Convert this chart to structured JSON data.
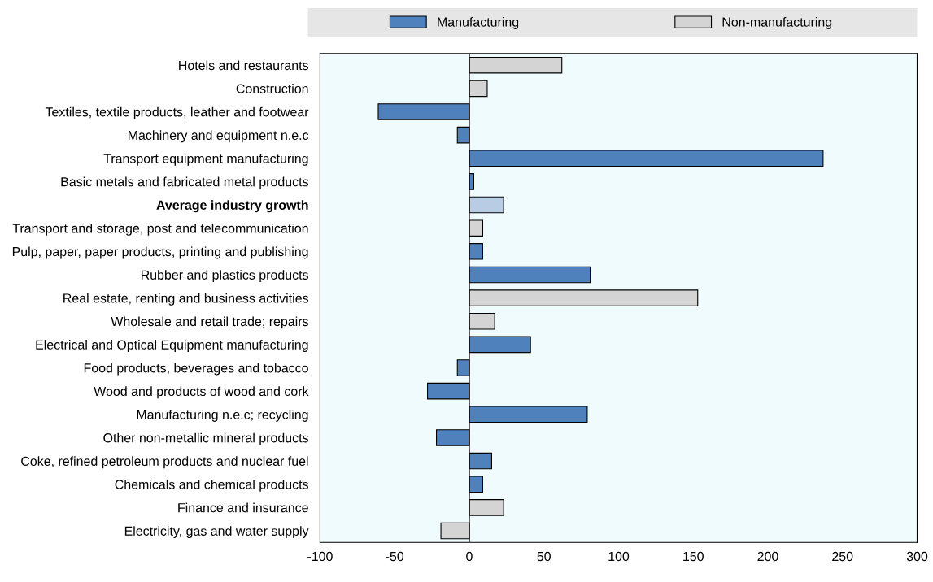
{
  "chart_data": {
    "type": "bar",
    "orientation": "horizontal",
    "categories": [
      "Hotels and restaurants",
      "Construction",
      "Textiles, textile products, leather and footwear",
      "Machinery and equipment n.e.c",
      "Transport equipment manufacturing",
      "Basic metals and fabricated metal products",
      "Average industry growth",
      "Transport and storage, post and telecommunication",
      "Pulp, paper, paper products, printing and publishing",
      "Rubber and plastics products",
      "Real estate, renting and business activities",
      "Wholesale and retail trade; repairs",
      "Electrical and Optical Equipment manufacturing",
      "Food products, beverages and tobacco",
      "Wood and products of wood and cork",
      "Manufacturing n.e.c; recycling",
      "Other non-metallic mineral products",
      "Coke, refined petroleum products and nuclear fuel",
      "Chemicals and chemical products",
      "Finance and insurance",
      "Electricity, gas and water supply"
    ],
    "series": [
      {
        "name": "Manufacturing",
        "color": "#4f81bd",
        "values": [
          null,
          null,
          -61,
          -8,
          237,
          3,
          null,
          null,
          9,
          81,
          null,
          null,
          41,
          -8,
          -28,
          79,
          -22,
          15,
          9,
          null,
          null
        ]
      },
      {
        "name": "Non-manufacturing",
        "color": "#d4d4d4",
        "values": [
          62,
          12,
          null,
          null,
          null,
          null,
          null,
          9,
          null,
          null,
          153,
          17,
          null,
          null,
          null,
          null,
          null,
          null,
          null,
          23,
          -19
        ]
      },
      {
        "color": "#b8cce4",
        "values": [
          null,
          null,
          null,
          null,
          null,
          null,
          23,
          null,
          null,
          null,
          null,
          null,
          null,
          null,
          null,
          null,
          null,
          null,
          null,
          null,
          null
        ]
      }
    ],
    "xlim": [
      -100,
      300
    ],
    "xticks": [
      -100,
      -50,
      0,
      50,
      100,
      150,
      200,
      250,
      300
    ],
    "ref_lines": [
      {
        "axis": "x",
        "value": 0,
        "color": "#000000"
      }
    ],
    "legend": "top",
    "grid": false
  }
}
